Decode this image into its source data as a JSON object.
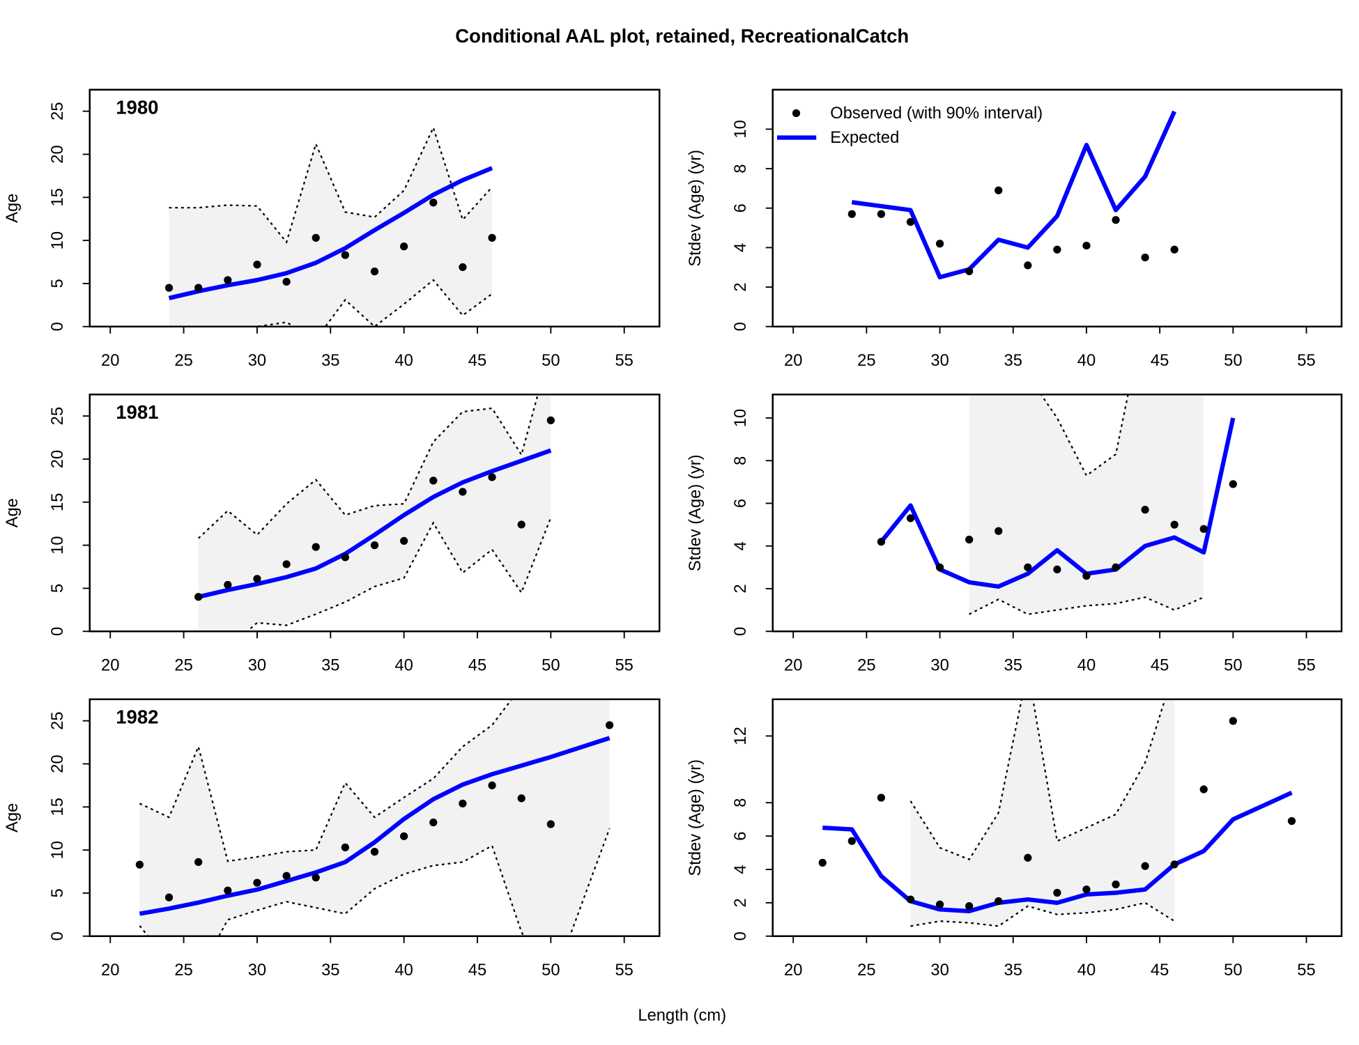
{
  "title": "Conditional AAL plot, retained, RecreationalCatch",
  "x_label": "Length (cm)",
  "chart_data": [
    {
      "type": "line",
      "title": "1980",
      "y_label": "Age",
      "x": [
        24,
        26,
        28,
        30,
        32,
        34,
        36,
        38,
        40,
        42,
        44,
        46
      ],
      "xlim": [
        18.6,
        57.4
      ],
      "xticks": [
        20,
        25,
        30,
        35,
        40,
        45,
        50,
        55
      ],
      "ylim": [
        0,
        27.5
      ],
      "yticks": [
        0,
        5,
        10,
        15,
        20,
        25
      ],
      "band_color": "#f2f2f2",
      "series": [
        {
          "name": "Observed (with 90% interval)",
          "color": "#000000",
          "values": [
            4.5,
            4.5,
            5.4,
            7.2,
            5.2,
            10.3,
            8.3,
            6.4,
            9.3,
            14.4,
            6.9,
            10.3
          ],
          "upper": [
            13.8,
            13.8,
            14.1,
            14.0,
            9.8,
            21.2,
            13.3,
            12.7,
            15.8,
            23.1,
            12.4,
            16.2
          ],
          "lower": [
            -5,
            -5,
            -3,
            0,
            0.5,
            -1.5,
            3.1,
            0,
            2.6,
            5.4,
            1.3,
            3.8
          ]
        },
        {
          "name": "Expected",
          "color": "#0000ff",
          "values": [
            3.3,
            4.1,
            4.8,
            5.4,
            6.2,
            7.4,
            9.1,
            11.2,
            13.2,
            15.3,
            17.0,
            18.4
          ]
        }
      ]
    },
    {
      "type": "line",
      "y_label": "Stdev (Age) (yr)",
      "legend": "topleft",
      "x": [
        24,
        26,
        28,
        30,
        32,
        34,
        36,
        38,
        40,
        42,
        44,
        46
      ],
      "xlim": [
        18.6,
        57.4
      ],
      "xticks": [
        20,
        25,
        30,
        35,
        40,
        45,
        50,
        55
      ],
      "ylim": [
        0,
        12
      ],
      "yticks": [
        0,
        2,
        4,
        6,
        8,
        10
      ],
      "band_color": "#f2f2f2",
      "series": [
        {
          "name": "Observed (with 90% interval)",
          "color": "#000000",
          "values": [
            5.7,
            5.7,
            5.3,
            4.2,
            2.8,
            6.9,
            3.1,
            3.9,
            4.1,
            5.4,
            3.5,
            3.9
          ]
        },
        {
          "name": "Expected",
          "color": "#0000ff",
          "values": [
            6.3,
            6.1,
            5.9,
            2.5,
            2.9,
            4.4,
            4.0,
            5.6,
            9.2,
            5.9,
            7.6,
            10.9
          ]
        }
      ]
    },
    {
      "type": "line",
      "title": "1981",
      "y_label": "Age",
      "x": [
        26,
        28,
        30,
        32,
        34,
        36,
        38,
        40,
        42,
        44,
        46,
        48,
        50
      ],
      "xlim": [
        18.6,
        57.4
      ],
      "xticks": [
        20,
        25,
        30,
        35,
        40,
        45,
        50,
        55
      ],
      "ylim": [
        0,
        27.5
      ],
      "yticks": [
        0,
        5,
        10,
        15,
        20,
        25
      ],
      "band_color": "#f2f2f2",
      "series": [
        {
          "name": "Observed (with 90% interval)",
          "color": "#000000",
          "values": [
            4.0,
            5.4,
            6.1,
            7.8,
            9.8,
            8.6,
            10.0,
            10.5,
            17.5,
            16.2,
            17.9,
            12.4,
            24.5
          ],
          "upper": [
            10.8,
            14.0,
            11.2,
            14.8,
            17.6,
            13.5,
            14.6,
            14.8,
            22.0,
            25.5,
            25.9,
            20.5,
            33
          ],
          "lower": [
            -3,
            -2,
            1.0,
            0.7,
            2.0,
            3.4,
            5.2,
            6.2,
            12.6,
            6.8,
            9.5,
            4.5,
            13.2
          ]
        },
        {
          "name": "Expected",
          "color": "#0000ff",
          "values": [
            4.0,
            4.8,
            5.5,
            6.3,
            7.3,
            9.0,
            11.2,
            13.5,
            15.6,
            17.3,
            18.6,
            19.8,
            21.0
          ]
        }
      ]
    },
    {
      "type": "line",
      "y_label": "Stdev (Age) (yr)",
      "x": [
        26,
        28,
        30,
        32,
        34,
        36,
        38,
        40,
        42,
        44,
        46,
        48,
        50
      ],
      "xlim": [
        18.6,
        57.4
      ],
      "xticks": [
        20,
        25,
        30,
        35,
        40,
        45,
        50,
        55
      ],
      "ylim": [
        0,
        11.1
      ],
      "yticks": [
        0,
        2,
        4,
        6,
        8,
        10
      ],
      "band_color": "#f2f2f2",
      "series": [
        {
          "name": "Observed (with 90% interval)",
          "color": "#000000",
          "values": [
            4.2,
            5.3,
            3.0,
            4.3,
            4.7,
            3.0,
            2.9,
            2.6,
            3.0,
            5.7,
            5.0,
            4.8,
            6.9
          ],
          "upper": [
            null,
            null,
            null,
            15,
            15,
            12,
            10.0,
            7.3,
            8.3,
            15,
            15,
            15,
            null
          ],
          "lower": [
            null,
            null,
            null,
            0.8,
            1.5,
            0.8,
            1.0,
            1.2,
            1.3,
            1.6,
            1.0,
            1.6,
            null
          ]
        },
        {
          "name": "Expected",
          "color": "#0000ff",
          "values": [
            4.2,
            5.9,
            2.9,
            2.3,
            2.1,
            2.7,
            3.8,
            2.7,
            2.9,
            4.0,
            4.4,
            3.7,
            10.0
          ]
        }
      ]
    },
    {
      "type": "line",
      "title": "1982",
      "y_label": "Age",
      "x": [
        22,
        24,
        26,
        28,
        30,
        32,
        34,
        36,
        38,
        40,
        42,
        44,
        46,
        48,
        50,
        54
      ],
      "xlim": [
        18.6,
        57.4
      ],
      "xticks": [
        20,
        25,
        30,
        35,
        40,
        45,
        50,
        55
      ],
      "ylim": [
        0,
        27.5
      ],
      "yticks": [
        0,
        5,
        10,
        15,
        20,
        25
      ],
      "band_color": "#f2f2f2",
      "series": [
        {
          "name": "Observed (with 90% interval)",
          "color": "#000000",
          "values": [
            8.3,
            4.5,
            8.6,
            5.3,
            6.2,
            7.0,
            6.8,
            10.3,
            9.8,
            11.6,
            13.2,
            15.4,
            17.5,
            16.0,
            13.0,
            24.5
          ],
          "upper": [
            15.4,
            13.8,
            22.0,
            8.7,
            9.2,
            9.8,
            10.0,
            17.8,
            13.8,
            16.1,
            18.3,
            22.0,
            24.5,
            29,
            33,
            35
          ],
          "lower": [
            1.2,
            -3,
            -4.4,
            1.9,
            3.0,
            4.0,
            3.3,
            2.6,
            5.5,
            7.2,
            8.2,
            8.6,
            10.5,
            0.5,
            -6,
            12.5
          ]
        },
        {
          "name": "Expected",
          "color": "#0000ff",
          "values": [
            2.6,
            3.2,
            3.9,
            4.7,
            5.4,
            6.4,
            7.4,
            8.6,
            10.9,
            13.6,
            15.9,
            17.6,
            18.8,
            19.8,
            20.8,
            23.0
          ]
        }
      ]
    },
    {
      "type": "line",
      "y_label": "Stdev (Age) (yr)",
      "x": [
        22,
        24,
        26,
        28,
        30,
        32,
        34,
        36,
        38,
        40,
        42,
        44,
        46,
        48,
        50,
        54
      ],
      "xlim": [
        18.6,
        57.4
      ],
      "xticks": [
        20,
        25,
        30,
        35,
        40,
        45,
        50,
        55
      ],
      "ylim": [
        0,
        14.2
      ],
      "yticks": [
        0,
        2,
        4,
        6,
        8,
        12
      ],
      "band_color": "#f2f2f2",
      "series": [
        {
          "name": "Observed (with 90% interval)",
          "color": "#000000",
          "values": [
            4.4,
            5.7,
            8.3,
            2.2,
            1.9,
            1.8,
            2.1,
            4.7,
            2.6,
            2.8,
            3.1,
            4.2,
            4.3,
            8.8,
            12.9,
            6.9
          ],
          "upper": [
            null,
            null,
            null,
            8.1,
            5.3,
            4.6,
            7.4,
            16,
            5.7,
            6.5,
            7.3,
            10.4,
            16,
            null,
            null,
            null
          ],
          "lower": [
            null,
            null,
            null,
            0.6,
            0.9,
            0.8,
            0.6,
            1.8,
            1.3,
            1.4,
            1.6,
            2.0,
            0.9,
            null,
            null,
            null
          ]
        },
        {
          "name": "Expected",
          "color": "#0000ff",
          "values": [
            6.5,
            6.4,
            3.6,
            2.1,
            1.6,
            1.5,
            2.0,
            2.2,
            2.0,
            2.5,
            2.6,
            2.8,
            4.3,
            5.1,
            7.0,
            8.6
          ]
        }
      ]
    }
  ]
}
